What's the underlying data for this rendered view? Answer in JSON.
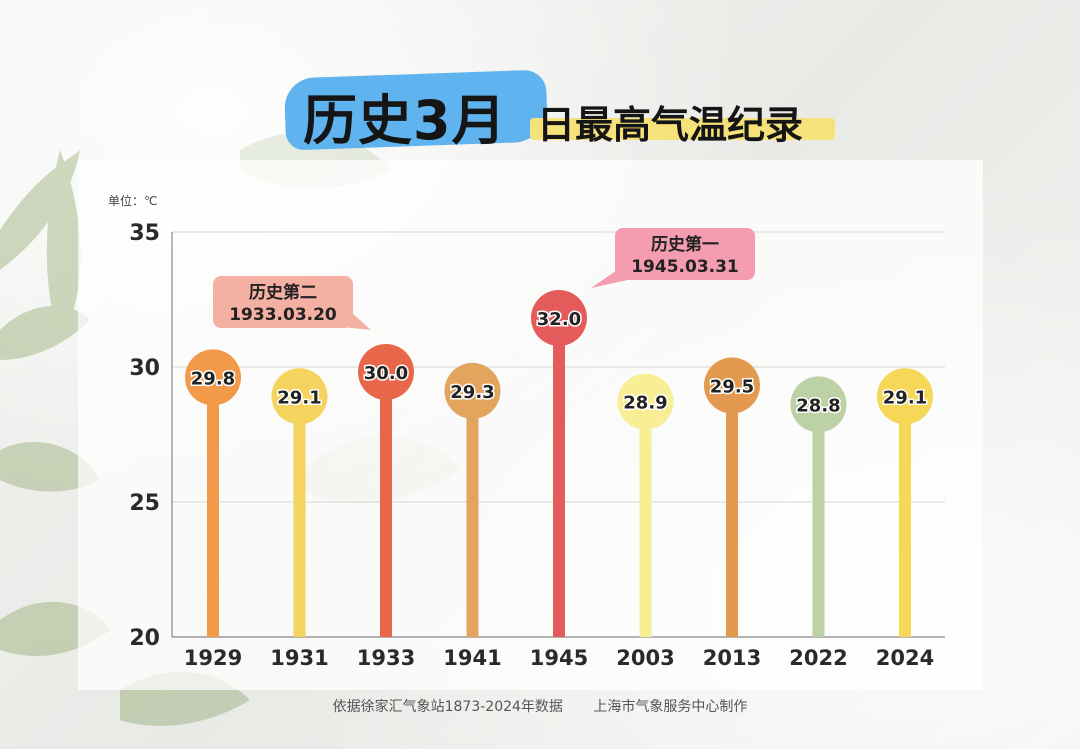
{
  "title": {
    "main": "历史3月",
    "sub": "日最高气温纪录"
  },
  "unit_label": "单位：℃",
  "chart_data": {
    "type": "lollipop",
    "categories": [
      "1929",
      "1931",
      "1933",
      "1941",
      "1945",
      "2003",
      "2013",
      "2022",
      "2024"
    ],
    "values": [
      29.8,
      29.1,
      30.0,
      29.3,
      32.0,
      28.9,
      29.5,
      28.8,
      29.1
    ],
    "value_labels": [
      "29.8",
      "29.1",
      "30.0",
      "29.3",
      "32.0",
      "28.9",
      "29.5",
      "28.8",
      "29.1"
    ],
    "colors": [
      "#f2994a",
      "#f5d35f",
      "#e8674a",
      "#e3a45e",
      "#e55a5a",
      "#f7ee95",
      "#e39a4e",
      "#bcd1a5",
      "#f7d757"
    ],
    "ylim": [
      20,
      35
    ],
    "yticks": [
      20,
      25,
      30,
      35
    ],
    "grid": true,
    "annotations": [
      {
        "category": "1933",
        "label": "历史第二",
        "date": "1933.03.20",
        "color": "#f4b0a3"
      },
      {
        "category": "1945",
        "label": "历史第一",
        "date": "1945.03.31",
        "color": "#f49db0"
      }
    ]
  },
  "footer": {
    "source": "依据徐家汇气象站1873-2024年数据",
    "credit": "上海市气象服务中心制作"
  }
}
